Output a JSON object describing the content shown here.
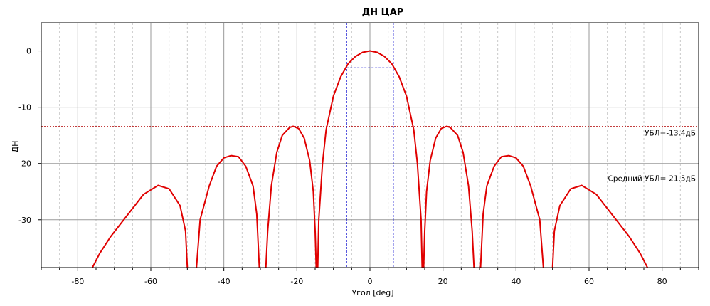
{
  "chart_data": {
    "type": "line",
    "title": "ДН ЦАР",
    "xlabel": "Угол [deg]",
    "ylabel": "ДН",
    "xlim": [
      -90,
      90
    ],
    "ylim": [
      -38.5,
      5
    ],
    "x_major_ticks": [
      -80,
      -60,
      -40,
      -20,
      0,
      20,
      40,
      60,
      80
    ],
    "x_tick_labels": [
      "-80",
      "-60",
      "-40",
      "-20",
      "0",
      "20",
      "40",
      "60",
      "80"
    ],
    "x_minor_step": 5,
    "y_major_ticks": [
      0,
      -10,
      -20,
      -30
    ],
    "y_tick_labels": [
      "0",
      "-10",
      "-20",
      "-30"
    ],
    "grid": true,
    "series": [
      {
        "color": "#e00000",
        "points": [
          [
            -76,
            -38.5
          ],
          [
            -74,
            -36
          ],
          [
            -71,
            -33
          ],
          [
            -68,
            -30.5
          ],
          [
            -65,
            -28
          ],
          [
            -62,
            -25.5
          ],
          [
            -58,
            -23.9
          ],
          [
            -55,
            -24.5
          ],
          [
            -52,
            -27.5
          ],
          [
            -50.5,
            -32
          ],
          [
            -50,
            -38.5
          ],
          [
            null,
            null
          ],
          [
            -47.5,
            -38.5
          ],
          [
            -46.5,
            -30
          ],
          [
            -44,
            -24
          ],
          [
            -42,
            -20.5
          ],
          [
            -40,
            -19
          ],
          [
            -38,
            -18.6
          ],
          [
            -36,
            -18.8
          ],
          [
            -34,
            -20.5
          ],
          [
            -32,
            -24
          ],
          [
            -31,
            -29
          ],
          [
            -30.3,
            -38.5
          ],
          [
            null,
            null
          ],
          [
            -28.5,
            -38.5
          ],
          [
            -28,
            -32
          ],
          [
            -27,
            -24
          ],
          [
            -25.5,
            -18
          ],
          [
            -24,
            -15
          ],
          [
            -22,
            -13.6
          ],
          [
            -21,
            -13.4
          ],
          [
            -19.5,
            -13.8
          ],
          [
            -18,
            -15.5
          ],
          [
            -16.5,
            -19.5
          ],
          [
            -15.5,
            -25
          ],
          [
            -15,
            -32
          ],
          [
            -14.7,
            -38.5
          ],
          [
            null,
            null
          ],
          [
            -14.3,
            -38.5
          ],
          [
            -14,
            -30
          ],
          [
            -13,
            -20
          ],
          [
            -12,
            -14
          ],
          [
            -10,
            -8
          ],
          [
            -8,
            -4.6
          ],
          [
            -6,
            -2.3
          ],
          [
            -4,
            -1.0
          ],
          [
            -2,
            -0.25
          ],
          [
            0,
            0
          ],
          [
            2,
            -0.25
          ],
          [
            4,
            -1.0
          ],
          [
            6,
            -2.3
          ],
          [
            8,
            -4.6
          ],
          [
            10,
            -8
          ],
          [
            12,
            -14
          ],
          [
            13,
            -20
          ],
          [
            14,
            -30
          ],
          [
            14.3,
            -38.5
          ],
          [
            null,
            null
          ],
          [
            14.7,
            -38.5
          ],
          [
            15,
            -32
          ],
          [
            15.5,
            -25
          ],
          [
            16.5,
            -19.5
          ],
          [
            18,
            -15.5
          ],
          [
            19.5,
            -13.8
          ],
          [
            21,
            -13.4
          ],
          [
            22,
            -13.6
          ],
          [
            24,
            -15
          ],
          [
            25.5,
            -18
          ],
          [
            27,
            -24
          ],
          [
            28,
            -32
          ],
          [
            28.5,
            -38.5
          ],
          [
            null,
            null
          ],
          [
            30.3,
            -38.5
          ],
          [
            31,
            -29
          ],
          [
            32,
            -24
          ],
          [
            34,
            -20.5
          ],
          [
            36,
            -18.8
          ],
          [
            38,
            -18.6
          ],
          [
            40,
            -19
          ],
          [
            42,
            -20.5
          ],
          [
            44,
            -24
          ],
          [
            46.5,
            -30
          ],
          [
            47.5,
            -38.5
          ],
          [
            null,
            null
          ],
          [
            50,
            -38.5
          ],
          [
            50.5,
            -32
          ],
          [
            52,
            -27.5
          ],
          [
            55,
            -24.5
          ],
          [
            58,
            -23.9
          ],
          [
            62,
            -25.5
          ],
          [
            65,
            -28
          ],
          [
            68,
            -30.5
          ],
          [
            71,
            -33
          ],
          [
            74,
            -36
          ],
          [
            76,
            -38.5
          ]
        ]
      }
    ],
    "annotations": {
      "sll": {
        "value": -13.4,
        "label": "УБЛ=-13.4дБ",
        "color": "#b00000"
      },
      "avg_sll": {
        "value": -21.5,
        "label": "Средний УБЛ=-21.5дБ",
        "color": "#b00000"
      },
      "beamwidth": {
        "left": -6.4,
        "right": 6.4,
        "level": -3,
        "color": "#0000cc"
      }
    }
  }
}
